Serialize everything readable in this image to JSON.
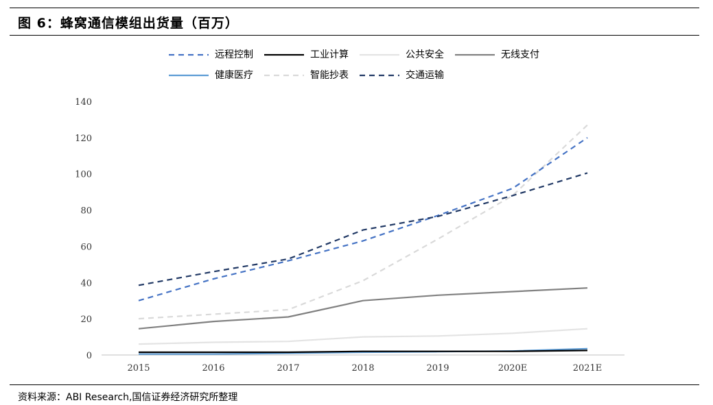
{
  "header": {
    "title": "图 6：蜂窝通信模组出货量（百万）"
  },
  "footer": {
    "source": "资料来源：ABI Research,国信证券经济研究所整理"
  },
  "chart_data": {
    "type": "line",
    "title": "",
    "xlabel": "",
    "ylabel": "",
    "categories": [
      "2015",
      "2016",
      "2017",
      "2018",
      "2019",
      "2020E",
      "2021E"
    ],
    "yticks": [
      "0",
      "20",
      "40",
      "60",
      "80",
      "100",
      "120",
      "140"
    ],
    "ylim": [
      0,
      140
    ],
    "grid": false,
    "legend_position": "top",
    "series": [
      {
        "name": "远程控制",
        "color": "#4472C4",
        "dash": "dashed",
        "values": [
          30,
          42,
          52,
          63,
          77,
          92,
          120
        ]
      },
      {
        "name": "工业计算",
        "color": "#000000",
        "dash": "solid",
        "values": [
          1.5,
          1.5,
          1.5,
          2,
          2,
          2,
          2.5
        ]
      },
      {
        "name": "公共安全",
        "color": "#E3E3E3",
        "dash": "solid",
        "values": [
          6,
          7,
          7.5,
          10,
          10.5,
          12,
          14.5
        ]
      },
      {
        "name": "无线支付",
        "color": "#808080",
        "dash": "solid",
        "values": [
          14.5,
          18.5,
          21,
          30,
          33,
          35,
          37
        ]
      },
      {
        "name": "健康医疗",
        "color": "#5B9BD5",
        "dash": "solid",
        "values": [
          0.5,
          0.5,
          1,
          1.5,
          1.8,
          2.2,
          3.5
        ]
      },
      {
        "name": "智能抄表",
        "color": "#D9D9D9",
        "dash": "dashed",
        "values": [
          20,
          22.5,
          25,
          41,
          64,
          88,
          127
        ]
      },
      {
        "name": "交通运输",
        "color": "#203864",
        "dash": "dashed",
        "values": [
          38.5,
          46,
          53,
          69,
          76.5,
          88,
          100.5
        ]
      }
    ]
  }
}
